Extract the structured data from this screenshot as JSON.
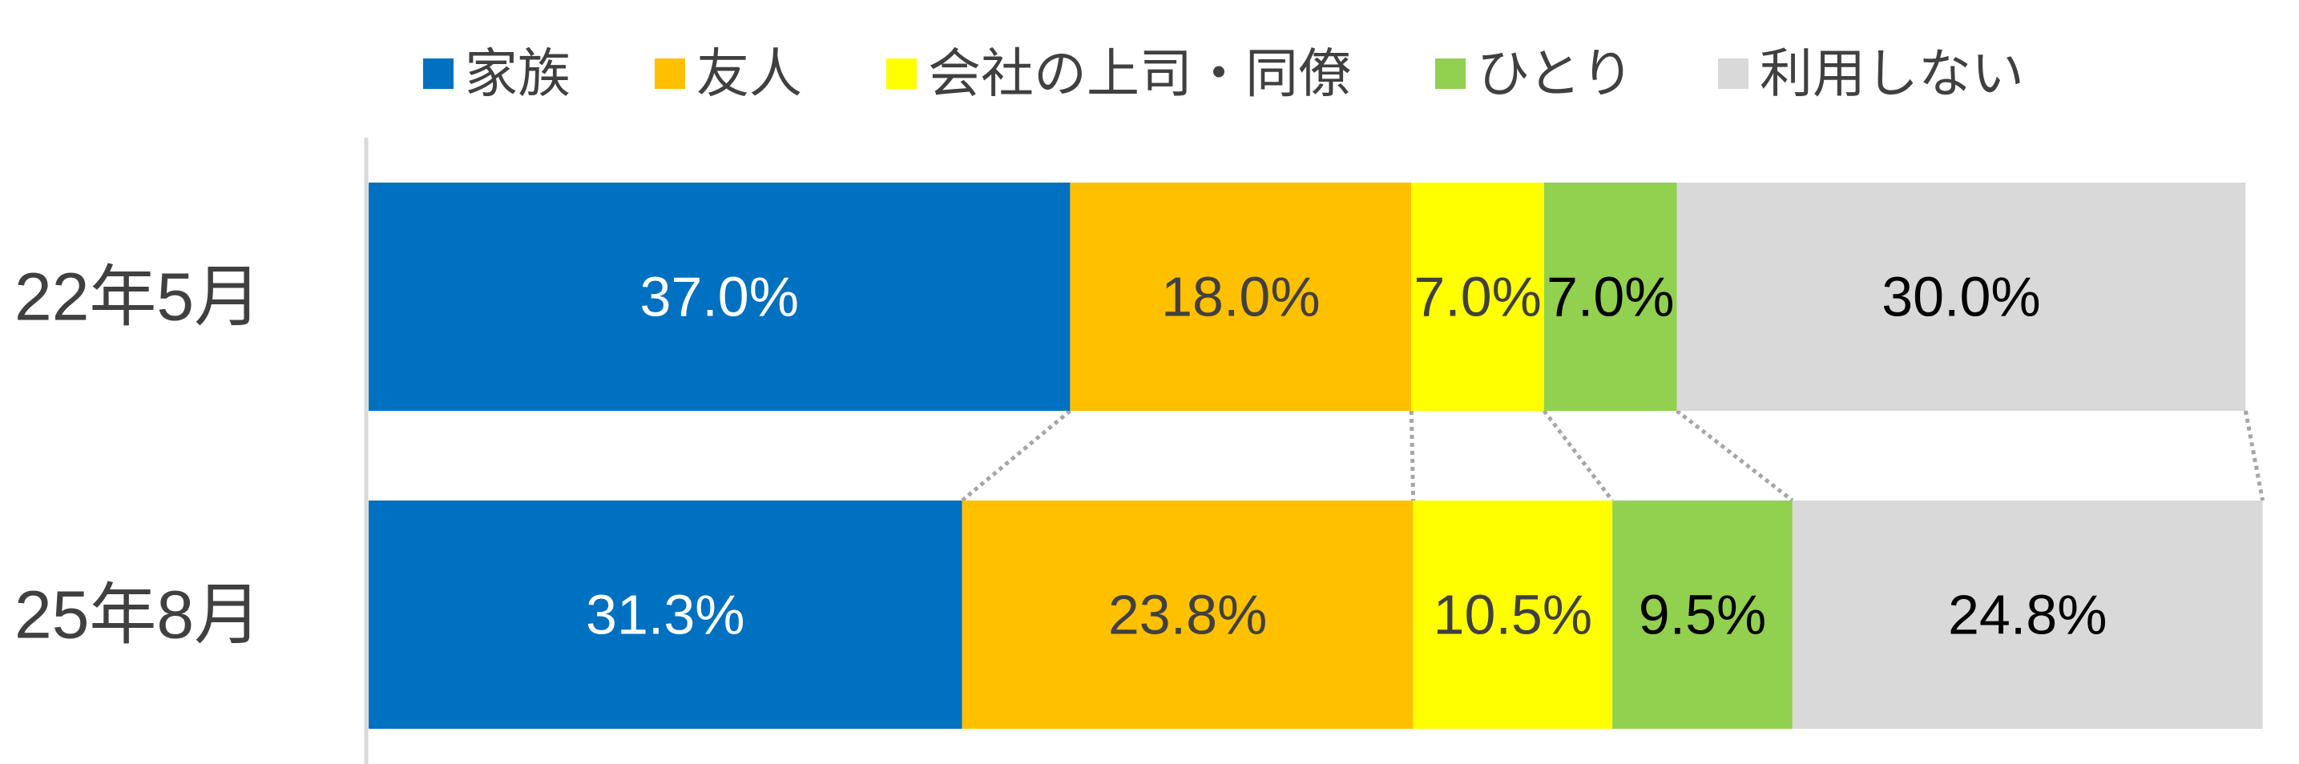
{
  "chart_data": {
    "type": "bar",
    "orientation": "horizontal",
    "stacked": true,
    "normalized": true,
    "categories": [
      "22年5月",
      "25年8月"
    ],
    "series": [
      {
        "name": "家族",
        "color": "#0070C0",
        "label_color": "#ffffff",
        "values": [
          37.0,
          31.3
        ],
        "labels": [
          "37.0%",
          "31.3%"
        ]
      },
      {
        "name": "友人",
        "color": "#FFC000",
        "label_color": "#404040",
        "values": [
          18.0,
          23.8
        ],
        "labels": [
          "18.0%",
          "23.8%"
        ]
      },
      {
        "name": "会社の上司・同僚",
        "color": "#FFFF00",
        "label_color": "#404040",
        "values": [
          7.0,
          10.5
        ],
        "labels": [
          "7.0%",
          "10.5%"
        ]
      },
      {
        "name": "ひとり",
        "color": "#92D050",
        "label_color": "#000000",
        "values": [
          7.0,
          9.5
        ],
        "labels": [
          "7.0%",
          "9.5%"
        ]
      },
      {
        "name": "利用しない",
        "color": "#D9D9D9",
        "label_color": "#000000",
        "values": [
          30.0,
          24.8
        ],
        "labels": [
          "30.0%",
          "24.8%"
        ]
      }
    ],
    "xlim": [
      0,
      100
    ],
    "legend_position": "top",
    "series_lines": true,
    "series_line_color": "#A6A6A6"
  }
}
